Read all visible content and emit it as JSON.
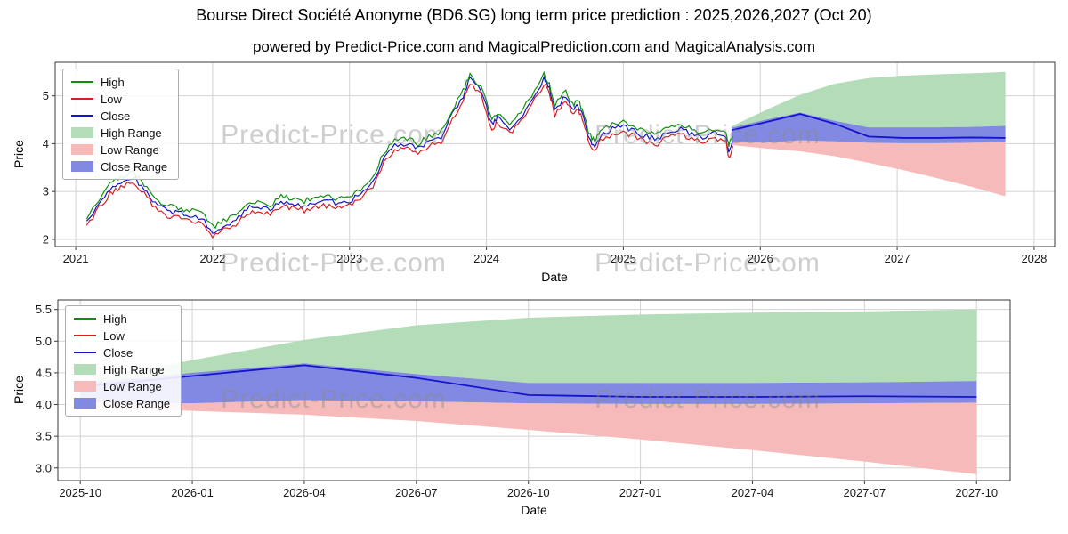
{
  "title": "Bourse Direct Société Anonyme (BD6.SG) long term price prediction : 2025,2026,2027 (Oct 20)",
  "subtitle": "powered by Predict-Price.com and MagicalPrediction.com and MagicalAnalysis.com",
  "watermark_text": "Predict-Price.com",
  "legend": {
    "items": [
      {
        "label": "High",
        "type": "line",
        "color": "#109010"
      },
      {
        "label": "Low",
        "type": "line",
        "color": "#d62020"
      },
      {
        "label": "Close",
        "type": "line",
        "color": "#1414cc"
      },
      {
        "label": "High Range",
        "type": "patch",
        "color": "#b3ddb8"
      },
      {
        "label": "Low Range",
        "type": "patch",
        "color": "#f6baba"
      },
      {
        "label": "Close Range",
        "type": "patch",
        "color": "#8289e2"
      }
    ]
  },
  "chart_data": [
    {
      "type": "line",
      "name": "history-and-prediction",
      "xlabel": "Date",
      "ylabel": "Price",
      "xlim": [
        2020.85,
        2028.15
      ],
      "ylim": [
        1.85,
        5.7
      ],
      "xticks": [
        2021,
        2022,
        2023,
        2024,
        2025,
        2026,
        2027,
        2028
      ],
      "xtick_labels": [
        "2021",
        "2022",
        "2023",
        "2024",
        "2025",
        "2026",
        "2027",
        "2028"
      ],
      "yticks": [
        2,
        3,
        4,
        5
      ],
      "ytick_labels": [
        "2",
        "3",
        "4",
        "5"
      ],
      "grid": true,
      "legend_position": "upper left",
      "history": {
        "x": [
          2021.08,
          2021.17,
          2021.25,
          2021.33,
          2021.42,
          2021.5,
          2021.58,
          2021.67,
          2021.75,
          2021.83,
          2021.92,
          2022.0,
          2022.08,
          2022.17,
          2022.25,
          2022.33,
          2022.42,
          2022.5,
          2022.58,
          2022.67,
          2022.75,
          2022.83,
          2022.92,
          2023.0,
          2023.08,
          2023.17,
          2023.25,
          2023.33,
          2023.42,
          2023.5,
          2023.58,
          2023.67,
          2023.75,
          2023.83,
          2023.88,
          2023.96,
          2024.04,
          2024.08,
          2024.17,
          2024.25,
          2024.33,
          2024.42,
          2024.46,
          2024.5,
          2024.58,
          2024.63,
          2024.67,
          2024.71,
          2024.75,
          2024.79,
          2024.83,
          2024.92,
          2025.0,
          2025.08,
          2025.17,
          2025.25,
          2025.33,
          2025.42,
          2025.5,
          2025.58,
          2025.67,
          2025.75,
          2025.77,
          2025.8
        ],
        "high": [
          2.45,
          2.85,
          3.15,
          3.3,
          3.4,
          3.15,
          2.85,
          2.7,
          2.65,
          2.6,
          2.55,
          2.25,
          2.4,
          2.5,
          2.75,
          2.8,
          2.7,
          2.9,
          2.85,
          2.8,
          2.88,
          2.9,
          2.85,
          2.9,
          3.05,
          3.3,
          3.8,
          4.05,
          4.1,
          4.0,
          4.15,
          4.25,
          4.7,
          5.1,
          5.45,
          5.2,
          4.5,
          4.65,
          4.4,
          4.65,
          5.0,
          5.45,
          5.25,
          4.8,
          5.1,
          4.8,
          4.9,
          4.65,
          4.2,
          4.05,
          4.25,
          4.4,
          4.45,
          4.35,
          4.25,
          4.2,
          4.35,
          4.4,
          4.3,
          4.25,
          4.32,
          4.22,
          3.95,
          4.15
        ],
        "low": [
          2.25,
          2.65,
          2.95,
          3.1,
          3.2,
          2.95,
          2.65,
          2.5,
          2.45,
          2.4,
          2.35,
          2.05,
          2.2,
          2.3,
          2.55,
          2.6,
          2.5,
          2.7,
          2.65,
          2.6,
          2.68,
          2.7,
          2.65,
          2.7,
          2.85,
          3.1,
          3.6,
          3.85,
          3.9,
          3.8,
          3.95,
          4.05,
          4.5,
          4.9,
          5.25,
          5.0,
          4.3,
          4.45,
          4.2,
          4.45,
          4.8,
          5.25,
          5.05,
          4.6,
          4.9,
          4.6,
          4.7,
          4.45,
          4.0,
          3.85,
          4.05,
          4.2,
          4.25,
          4.15,
          4.05,
          4.0,
          4.15,
          4.2,
          4.1,
          4.05,
          4.12,
          4.02,
          3.7,
          3.95
        ],
        "close": [
          2.35,
          2.75,
          3.05,
          3.2,
          3.3,
          3.05,
          2.75,
          2.6,
          2.55,
          2.5,
          2.45,
          2.15,
          2.3,
          2.4,
          2.65,
          2.7,
          2.6,
          2.8,
          2.75,
          2.7,
          2.78,
          2.8,
          2.75,
          2.8,
          2.95,
          3.2,
          3.7,
          3.95,
          4.0,
          3.9,
          4.05,
          4.15,
          4.6,
          5.0,
          5.35,
          5.1,
          4.4,
          4.55,
          4.3,
          4.55,
          4.9,
          5.35,
          5.15,
          4.7,
          5.0,
          4.7,
          4.8,
          4.55,
          4.1,
          3.95,
          4.15,
          4.3,
          4.35,
          4.25,
          4.15,
          4.1,
          4.25,
          4.3,
          4.2,
          4.15,
          4.22,
          4.12,
          3.82,
          4.05
        ]
      },
      "prediction": {
        "x": [
          2025.79,
          2026.04,
          2026.29,
          2026.54,
          2026.79,
          2027.04,
          2027.29,
          2027.54,
          2027.79
        ],
        "close": [
          4.28,
          4.45,
          4.62,
          4.42,
          4.15,
          4.12,
          4.12,
          4.13,
          4.12
        ],
        "close_top": [
          4.33,
          4.5,
          4.65,
          4.48,
          4.34,
          4.34,
          4.34,
          4.35,
          4.37
        ],
        "close_bottom": [
          4.04,
          4.02,
          4.07,
          4.05,
          4.02,
          4.01,
          4.01,
          4.02,
          4.03
        ],
        "high_top": [
          4.36,
          4.7,
          5.02,
          5.25,
          5.37,
          5.42,
          5.45,
          5.47,
          5.5
        ],
        "low_bottom": [
          3.97,
          3.9,
          3.84,
          3.74,
          3.6,
          3.45,
          3.28,
          3.1,
          2.9
        ]
      }
    },
    {
      "type": "area",
      "name": "prediction-detail",
      "xlabel": "Date",
      "ylabel": "Price",
      "x_labels": [
        "2025-10",
        "2026-01",
        "2026-04",
        "2026-07",
        "2026-10",
        "2027-01",
        "2027-04",
        "2027-07",
        "2027-10"
      ],
      "xlim": [
        -0.2,
        8.3
      ],
      "ylim": [
        2.8,
        5.65
      ],
      "yticks": [
        3.0,
        3.5,
        4.0,
        4.5,
        5.0,
        5.5
      ],
      "ytick_labels": [
        "3.0",
        "3.5",
        "4.0",
        "4.5",
        "5.0",
        "5.5"
      ],
      "grid": true,
      "legend_position": "upper left",
      "prediction": {
        "x": [
          0,
          1,
          2,
          3,
          4,
          5,
          6,
          7,
          8
        ],
        "close": [
          4.28,
          4.45,
          4.62,
          4.42,
          4.15,
          4.12,
          4.12,
          4.13,
          4.12
        ],
        "close_top": [
          4.33,
          4.5,
          4.65,
          4.48,
          4.34,
          4.34,
          4.34,
          4.35,
          4.37
        ],
        "close_bottom": [
          4.04,
          4.02,
          4.07,
          4.05,
          4.02,
          4.01,
          4.01,
          4.02,
          4.03
        ],
        "high_top": [
          4.36,
          4.7,
          5.02,
          5.25,
          5.37,
          5.42,
          5.45,
          5.47,
          5.5
        ],
        "low_bottom": [
          3.97,
          3.9,
          3.84,
          3.74,
          3.6,
          3.45,
          3.28,
          3.1,
          2.9
        ]
      }
    }
  ]
}
